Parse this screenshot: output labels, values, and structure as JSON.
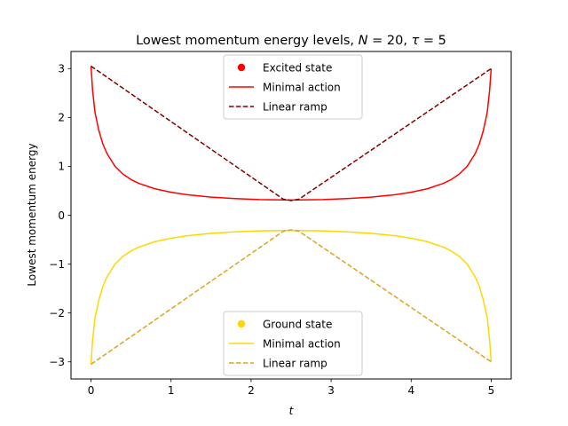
{
  "chart_data": {
    "type": "line",
    "title": {
      "prefix": "Lowest momentum energy levels, ",
      "N_symbol": "N",
      "N_value": " = 20, ",
      "tau_symbol": "τ",
      "tau_value": " = 5"
    },
    "xlabel": "t",
    "ylabel": "Lowest momentum energy",
    "xlim": [
      -0.25,
      5.25
    ],
    "ylim": [
      -3.35,
      3.35
    ],
    "xticks": [
      0,
      1,
      2,
      3,
      4,
      5
    ],
    "xtick_labels": [
      "0",
      "1",
      "2",
      "3",
      "4",
      "5"
    ],
    "yticks": [
      -3,
      -2,
      -1,
      0,
      1,
      2,
      3
    ],
    "ytick_labels": [
      "−3",
      "−2",
      "−1",
      "0",
      "1",
      "2",
      "3"
    ],
    "grid": false,
    "series": [
      {
        "key": "excited_minimal",
        "name": "Minimal action",
        "color": "#ff0000",
        "style": "solid",
        "x": [
          0,
          0.02,
          0.05,
          0.1,
          0.15,
          0.2,
          0.3,
          0.4,
          0.5,
          0.6,
          0.8,
          1.0,
          1.2,
          1.5,
          1.8,
          2.1,
          2.5,
          2.9,
          3.2,
          3.5,
          3.8,
          4.0,
          4.2,
          4.4,
          4.5,
          4.6,
          4.7,
          4.8,
          4.85,
          4.9,
          4.95,
          4.98,
          5.0
        ],
        "y": [
          3.05,
          2.55,
          2.1,
          1.72,
          1.45,
          1.26,
          1.0,
          0.84,
          0.73,
          0.65,
          0.54,
          0.47,
          0.42,
          0.37,
          0.34,
          0.32,
          0.31,
          0.32,
          0.34,
          0.37,
          0.42,
          0.47,
          0.54,
          0.65,
          0.73,
          0.84,
          1.0,
          1.26,
          1.45,
          1.72,
          2.1,
          2.55,
          3.0
        ]
      },
      {
        "key": "excited_linear",
        "name": "Linear ramp",
        "color": "#800000",
        "style": "dashed",
        "x": [
          0,
          2.4,
          2.5,
          2.6,
          5.0
        ],
        "y": [
          3.05,
          0.33,
          0.3,
          0.33,
          3.0
        ]
      },
      {
        "key": "ground_minimal",
        "name": "Minimal action",
        "color": "#ffd700",
        "style": "solid",
        "x": [
          0,
          0.02,
          0.05,
          0.1,
          0.15,
          0.2,
          0.3,
          0.4,
          0.5,
          0.6,
          0.8,
          1.0,
          1.2,
          1.5,
          1.8,
          2.1,
          2.5,
          2.9,
          3.2,
          3.5,
          3.8,
          4.0,
          4.2,
          4.4,
          4.5,
          4.6,
          4.7,
          4.8,
          4.85,
          4.9,
          4.95,
          4.98,
          5.0
        ],
        "y": [
          -3.05,
          -2.55,
          -2.1,
          -1.72,
          -1.45,
          -1.26,
          -1.0,
          -0.84,
          -0.73,
          -0.65,
          -0.54,
          -0.47,
          -0.42,
          -0.37,
          -0.34,
          -0.32,
          -0.31,
          -0.32,
          -0.34,
          -0.37,
          -0.42,
          -0.47,
          -0.54,
          -0.65,
          -0.73,
          -0.84,
          -1.0,
          -1.26,
          -1.45,
          -1.72,
          -2.1,
          -2.55,
          -3.0
        ]
      },
      {
        "key": "ground_linear",
        "name": "Linear ramp",
        "color": "#daa520",
        "style": "dashed",
        "x": [
          0,
          2.4,
          2.5,
          2.6,
          5.0
        ],
        "y": [
          -3.05,
          -0.33,
          -0.3,
          -0.33,
          -3.0
        ]
      }
    ],
    "legends": [
      {
        "placement": "upper-center",
        "entries": [
          {
            "label": "Excited state",
            "marker": "dot",
            "color": "#ff0000"
          },
          {
            "label": "Minimal action",
            "marker": "solid",
            "color": "#ff0000"
          },
          {
            "label": "Linear ramp",
            "marker": "dashed",
            "color": "#800000"
          }
        ]
      },
      {
        "placement": "lower-center",
        "entries": [
          {
            "label": "Ground state",
            "marker": "dot",
            "color": "#ffd700"
          },
          {
            "label": "Minimal action",
            "marker": "solid",
            "color": "#ffd700"
          },
          {
            "label": "Linear ramp",
            "marker": "dashed",
            "color": "#daa520"
          }
        ]
      }
    ]
  }
}
